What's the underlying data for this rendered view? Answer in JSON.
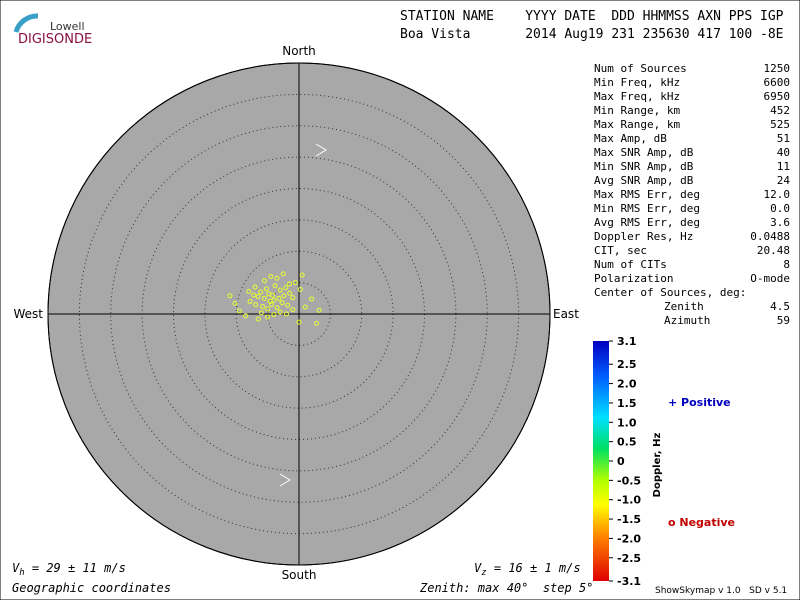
{
  "header": {
    "logo_top": "Lowell",
    "logo_bottom": "DIGISONDE",
    "labels": "STATION NAME    YYYY DATE  DDD HHMMSS AXN PPS IGP",
    "values": "Boa Vista       2014 Aug19 231 235630 417 100 -8E"
  },
  "chart_data": {
    "type": "polar-scatter",
    "directions": {
      "north": "North",
      "south": "South",
      "east": "East",
      "west": "West"
    },
    "rlim": [
      0,
      40
    ],
    "rings": [
      5,
      10,
      15,
      20,
      25,
      30,
      35,
      40
    ],
    "series": [
      {
        "color": "#e8ff30",
        "x": [
          -7.8,
          -7.2,
          -6.9,
          -6.5,
          -6.1,
          -5.8,
          -5.5,
          -5.2,
          -5.0,
          -4.8,
          -4.6,
          -4.4,
          -4.2,
          -4.0,
          -3.8,
          -3.5,
          -3.2,
          -3.0,
          -2.7,
          -2.4,
          -2.1,
          -1.8,
          -1.5,
          -1.0,
          -0.6,
          0.2,
          1.0,
          2.0,
          2.8,
          3.2,
          -10.2,
          -11.0,
          -9.5,
          -8.5,
          -6.0,
          -5.0,
          -4.0,
          -3.0,
          -2.0,
          -1.0,
          0.5,
          -7.0,
          -5.5,
          -4.5,
          -3.5,
          -2.5,
          -6.5,
          -8.0,
          0.0,
          -1.5
        ],
        "values": [
          2.0,
          3.0,
          1.5,
          2.8,
          3.5,
          1.2,
          2.5,
          4.0,
          0.8,
          3.2,
          2.0,
          1.5,
          3.0,
          2.2,
          4.5,
          1.0,
          2.5,
          3.8,
          1.8,
          2.9,
          4.2,
          1.4,
          3.3,
          2.6,
          5.0,
          3.9,
          1.1,
          2.4,
          -1.5,
          0.6,
          1.7,
          2.9,
          0.5,
          -0.3,
          0.2,
          -0.5,
          -0.1,
          0.3,
          0.0,
          0.7,
          6.2,
          4.3,
          5.3,
          6.0,
          5.7,
          6.4,
          -0.8,
          3.6,
          -1.3,
          4.8
        ]
      }
    ],
    "colorbar": {
      "label": "Doppler, Hz",
      "lim": [
        -3.1,
        3.1
      ],
      "ticks": [
        3.1,
        2.5,
        {
          "value": 2,
          "label": "2.0"
        },
        1.5,
        {
          "value": 1,
          "label": "1.0"
        },
        0.5,
        0,
        -0.5,
        {
          "value": -1,
          "label": "-1.0"
        },
        -1.5,
        {
          "value": -2,
          "label": "-2.0"
        },
        -2.5,
        -3.1
      ]
    },
    "legend": {
      "positive": "+ Positive",
      "negative": "o Negative"
    }
  },
  "stats": [
    [
      "Num of Sources",
      "1250"
    ],
    [
      "Min Freq, kHz",
      "6600"
    ],
    [
      "Max Freq, kHz",
      "6950"
    ],
    [
      "Min Range, km",
      "452"
    ],
    [
      "Max Range, km",
      "525"
    ],
    [
      "Max Amp, dB",
      "51"
    ],
    [
      "Max SNR Amp, dB",
      "40"
    ],
    [
      "Min SNR Amp, dB",
      "11"
    ],
    [
      "Avg SNR Amp, dB",
      "24"
    ],
    [
      "Max RMS Err, deg",
      "12.0"
    ],
    [
      "Min RMS Err, deg",
      "0.0"
    ],
    [
      "Avg RMS Err, deg",
      "3.6"
    ],
    [
      "Doppler Res, Hz",
      "0.0488"
    ],
    [
      "CIT, sec",
      "20.48"
    ],
    [
      "Num of CITs",
      "8"
    ],
    [
      "Polarization",
      "O-mode"
    ]
  ],
  "center": {
    "title": "Center of Sources, deg:",
    "rows": [
      [
        "Zenith",
        "4.5"
      ],
      [
        "Azimuth",
        "59"
      ]
    ]
  },
  "footer": {
    "vh_v": "V",
    "vh_sub": "h",
    "vh_text": " = 29 ± 11 m/s",
    "vz_v": "V",
    "vz_sub": "z",
    "vz_text": " = 16 ± 1 m/s",
    "coords": "Geographic coordinates",
    "zenith": "Zenith: max 40°  step 5°",
    "version": "ShowSkymap v 1.0   SD v 5.1"
  }
}
